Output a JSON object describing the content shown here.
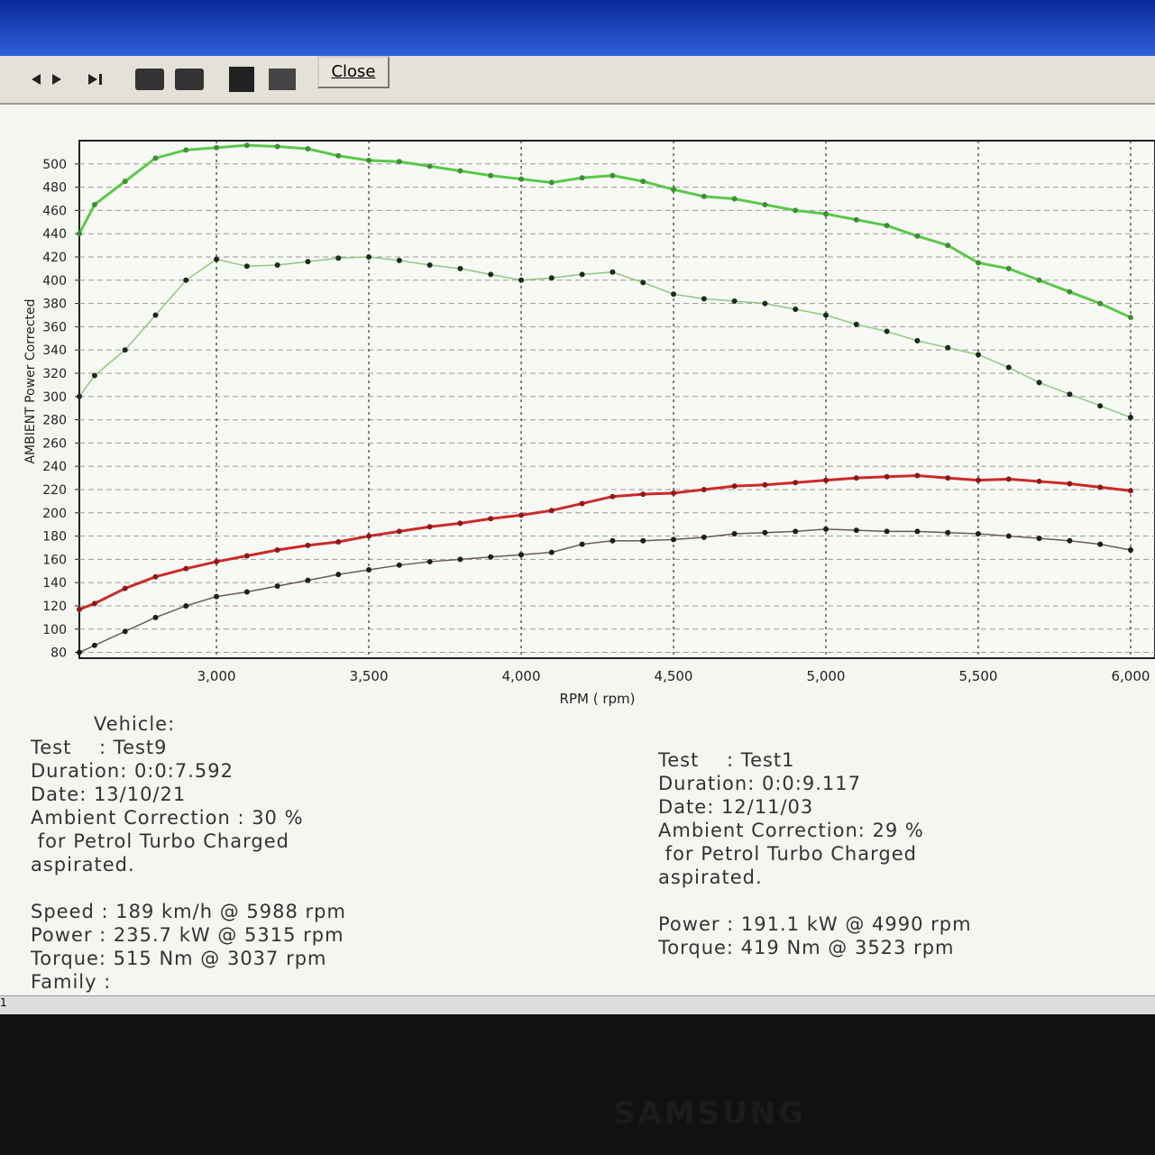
{
  "toolbar": {
    "close": "Close"
  },
  "chart_data": {
    "type": "line",
    "ylabel": "AMBIENT Power Corrected",
    "xlabel": "RPM ( rpm)",
    "xlim": [
      2550,
      6080
    ],
    "ylim": [
      75,
      520
    ],
    "xticks": [
      {
        "value": 3000,
        "label": "3,000"
      },
      {
        "value": 3500,
        "label": "3,500"
      },
      {
        "value": 4000,
        "label": "4,000"
      },
      {
        "value": 4500,
        "label": "4,500"
      },
      {
        "value": 5000,
        "label": "5,000"
      },
      {
        "value": 5500,
        "label": "5,500"
      },
      {
        "value": 6000,
        "label": "6,000"
      }
    ],
    "yticks": [
      80,
      100,
      120,
      140,
      160,
      180,
      200,
      220,
      240,
      260,
      280,
      300,
      320,
      340,
      360,
      380,
      400,
      420,
      440,
      460,
      480,
      500
    ],
    "grid": true,
    "x": [
      2550,
      2600,
      2700,
      2800,
      2900,
      3000,
      3100,
      3200,
      3300,
      3400,
      3500,
      3600,
      3700,
      3800,
      3900,
      4000,
      4100,
      4200,
      4300,
      4400,
      4500,
      4600,
      4700,
      4800,
      4900,
      5000,
      5100,
      5200,
      5300,
      5400,
      5500,
      5600,
      5700,
      5800,
      5900,
      6000
    ],
    "series": [
      {
        "color": "#5cc84a",
        "marker_color": "#3f8f35",
        "style": "solid",
        "values": [
          440,
          465,
          485,
          505,
          512,
          514,
          516,
          515,
          513,
          507,
          503,
          502,
          498,
          494,
          490,
          487,
          484,
          488,
          490,
          485,
          478,
          472,
          470,
          465,
          460,
          457,
          452,
          447,
          438,
          430,
          415,
          410,
          400,
          390,
          380,
          368
        ]
      },
      {
        "color": "#8fc87f",
        "marker_color": "#1e2a1e",
        "style": "dotted",
        "values": [
          300,
          318,
          340,
          370,
          400,
          418,
          412,
          413,
          416,
          419,
          420,
          417,
          413,
          410,
          405,
          400,
          402,
          405,
          407,
          398,
          388,
          384,
          382,
          380,
          375,
          370,
          362,
          356,
          348,
          342,
          336,
          325,
          312,
          302,
          292,
          282
        ]
      },
      {
        "color": "#cc2a2a",
        "marker_color": "#8a1a1a",
        "style": "solid",
        "values": [
          117,
          122,
          135,
          145,
          152,
          158,
          163,
          168,
          172,
          175,
          180,
          184,
          188,
          191,
          195,
          198,
          202,
          208,
          214,
          216,
          217,
          220,
          223,
          224,
          226,
          228,
          230,
          231,
          232,
          230,
          228,
          229,
          227,
          225,
          222,
          219
        ]
      },
      {
        "color": "#6a5a5a",
        "marker_color": "#1e1e1e",
        "style": "dotted",
        "values": [
          80,
          86,
          98,
          110,
          120,
          128,
          132,
          137,
          142,
          147,
          151,
          155,
          158,
          160,
          162,
          164,
          166,
          173,
          176,
          176,
          177,
          179,
          182,
          183,
          184,
          186,
          185,
          184,
          184,
          183,
          182,
          180,
          178,
          176,
          173,
          168
        ]
      }
    ]
  },
  "info_left": {
    "lines": [
      "Vehicle:",
      "Test    : Test9",
      "Duration: 0:0:7.592",
      "Date: 13/10/21",
      "Ambient Correction : 30 %",
      " for Petrol Turbo Charged",
      "aspirated.",
      "",
      "Speed : 189 km/h @ 5988 rpm",
      "Power : 235.7 kW @ 5315 rpm",
      "Torque: 515 Nm @ 3037 rpm",
      "Family :"
    ]
  },
  "info_right": {
    "lines": [
      "Test    : Test1",
      "Duration: 0:0:9.117",
      "Date: 12/11/03",
      "Ambient Correction: 29 %",
      " for Petrol Turbo Charged",
      "aspirated.",
      "",
      "Power : 191.1 kW @ 4990 rpm",
      "Torque: 419 Nm @ 3523 rpm"
    ]
  },
  "status": "1",
  "bezel_brand": "SAMSUNG"
}
